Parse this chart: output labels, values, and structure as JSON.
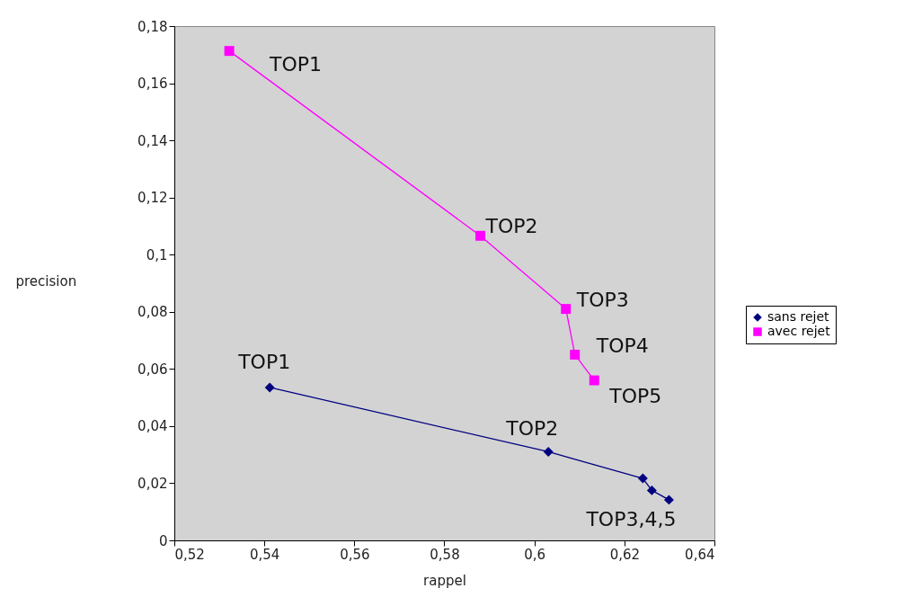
{
  "chart_data": {
    "type": "line",
    "xlabel": "rappel",
    "ylabel": "precision",
    "xlim": [
      0.52,
      0.64
    ],
    "ylim": [
      0,
      0.18
    ],
    "xticks": [
      {
        "value": 0.52,
        "label": "0,52"
      },
      {
        "value": 0.54,
        "label": "0,54"
      },
      {
        "value": 0.56,
        "label": "0,56"
      },
      {
        "value": 0.58,
        "label": "0,58"
      },
      {
        "value": 0.6,
        "label": "0,6"
      },
      {
        "value": 0.62,
        "label": "0,62"
      },
      {
        "value": 0.64,
        "label": "0,64"
      }
    ],
    "yticks": [
      0,
      {
        "value": 0.02,
        "label": "0,02"
      },
      {
        "value": 0.04,
        "label": "0,04"
      },
      {
        "value": 0.06,
        "label": "0,06"
      },
      {
        "value": 0.08,
        "label": "0,08"
      },
      {
        "value": 0.1,
        "label": "0,1"
      },
      {
        "value": 0.12,
        "label": "0,12"
      },
      {
        "value": 0.14,
        "label": "0,14"
      },
      {
        "value": 0.16,
        "label": "0,16"
      },
      {
        "value": 0.18,
        "label": "0,18"
      }
    ],
    "series": [
      {
        "name": "sans rejet",
        "color": "#000080",
        "marker": "diamond",
        "x": [
          0.5412,
          0.6031,
          0.6241,
          0.6261,
          0.6299
        ],
        "values": [
          0.0535,
          0.031,
          0.0217,
          0.0175,
          0.0142
        ]
      },
      {
        "name": "avec rejet",
        "color": "#ff00ff",
        "marker": "square",
        "x": [
          0.5322,
          0.588,
          0.607,
          0.609,
          0.6133
        ],
        "values": [
          0.1713,
          0.1066,
          0.081,
          0.065,
          0.056
        ]
      }
    ],
    "annotations": [
      {
        "text": "TOP1",
        "x": 0.5322,
        "y": 0.1713
      },
      {
        "text": "TOP2",
        "x": 0.588,
        "y": 0.1066
      },
      {
        "text": "TOP3",
        "x": 0.607,
        "y": 0.081
      },
      {
        "text": "TOP4",
        "x": 0.609,
        "y": 0.065
      },
      {
        "text": "TOP5",
        "x": 0.6133,
        "y": 0.056
      },
      {
        "text": "TOP1",
        "x": 0.5412,
        "y": 0.0535
      },
      {
        "text": "TOP2",
        "x": 0.6031,
        "y": 0.031
      },
      {
        "text": "TOP3,4,5",
        "x": 0.6299,
        "y": 0.0142
      }
    ],
    "grid": false,
    "legend": "right",
    "line_style": "solid"
  }
}
